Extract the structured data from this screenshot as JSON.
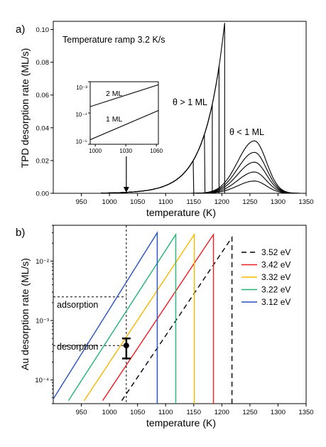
{
  "chart_data": [
    {
      "panel": "a)",
      "type": "line",
      "xlabel": "temperature (K)",
      "ylabel": "TPD desorption rate (ML/s)",
      "xlim": [
        900,
        1350
      ],
      "ylim": [
        0,
        0.105
      ],
      "xticks": [
        950,
        1000,
        1050,
        1100,
        1150,
        1200,
        1250,
        1300,
        1350
      ],
      "yticks": [
        0.0,
        0.02,
        0.04,
        0.06,
        0.08,
        0.1
      ],
      "ytick_labels": [
        "0.00",
        "0.02",
        "0.04",
        "0.06",
        "0.08",
        "0.10"
      ],
      "annotations": [
        {
          "text": "Temperature ramp 3.2 K/s"
        },
        {
          "text": "θ > 1 ML"
        },
        {
          "text": "θ < 1 ML"
        }
      ],
      "arrow_at_x": 1030,
      "zero_order_peaks": {
        "leading_edge_shared": true,
        "cutoff_x": [
          1150,
          1170,
          1183,
          1195,
          1205
        ],
        "cutoff_peak_y": [
          0.021,
          0.044,
          0.057,
          0.071,
          0.104
        ]
      },
      "first_order_peaks": {
        "peak_x": 1258,
        "peak_y": [
          0.0075,
          0.013,
          0.019,
          0.025,
          0.032
        ]
      },
      "inset": {
        "type": "line",
        "scale": "log",
        "xlim": [
          995,
          1062
        ],
        "xticks": [
          1000,
          1030,
          1060
        ],
        "ylim": [
          1e-05,
          0.001
        ],
        "yticks": [
          "10⁻⁵",
          "10⁻⁴",
          "10⁻³"
        ],
        "series": [
          {
            "name": "2 ML",
            "x": [
              995,
              1062
            ],
            "y": [
              0.00016,
              0.0008
            ]
          },
          {
            "name": "1 ML",
            "x": [
              995,
              1062
            ],
            "y": [
              1.4e-05,
              0.00012
            ]
          }
        ]
      }
    },
    {
      "panel": "b)",
      "type": "line",
      "xlabel": "temperature (K)",
      "ylabel": "Au desorption rate (ML/s)",
      "xlim": [
        900,
        1350
      ],
      "xticks": [
        950,
        1000,
        1050,
        1100,
        1150,
        1200,
        1250,
        1300,
        1350
      ],
      "yscale": "log",
      "ylim": [
        4e-05,
        0.04
      ],
      "yticks": [
        "10⁻⁴",
        "10⁻³",
        "10⁻²"
      ],
      "legend_position": "top-right",
      "series": [
        {
          "name": "3.52 eV",
          "color": "#000000",
          "dashed": true,
          "x": [
            1022,
            1218
          ],
          "y": [
            4.5e-05,
            0.025
          ],
          "cutoff_x": 1218
        },
        {
          "name": "3.42 eV",
          "color": "#ee1c24",
          "dashed": false,
          "x": [
            988,
            1185
          ],
          "y": [
            4.5e-05,
            0.028
          ],
          "cutoff_x": 1185
        },
        {
          "name": "3.32 eV",
          "color": "#f5b800",
          "dashed": false,
          "x": [
            955,
            1151
          ],
          "y": [
            4.5e-05,
            0.028
          ],
          "cutoff_x": 1151
        },
        {
          "name": "3.22 eV",
          "color": "#22b573",
          "dashed": false,
          "x": [
            927,
            1118
          ],
          "y": [
            4.5e-05,
            0.028
          ],
          "cutoff_x": 1118
        },
        {
          "name": "3.12 eV",
          "color": "#2a52be",
          "dashed": false,
          "x": [
            900,
            1085
          ],
          "y": [
            4.8e-05,
            0.03
          ],
          "cutoff_x": 1085
        }
      ],
      "reference_line_x": 1030,
      "annotations": [
        {
          "text": "adsorption",
          "y": 0.0025
        },
        {
          "text": "desorption",
          "y": 0.00038
        }
      ],
      "data_point": {
        "x": 1030,
        "y": 0.00038,
        "y_err_low": 0.00023,
        "y_err_high": 0.0005
      }
    }
  ]
}
